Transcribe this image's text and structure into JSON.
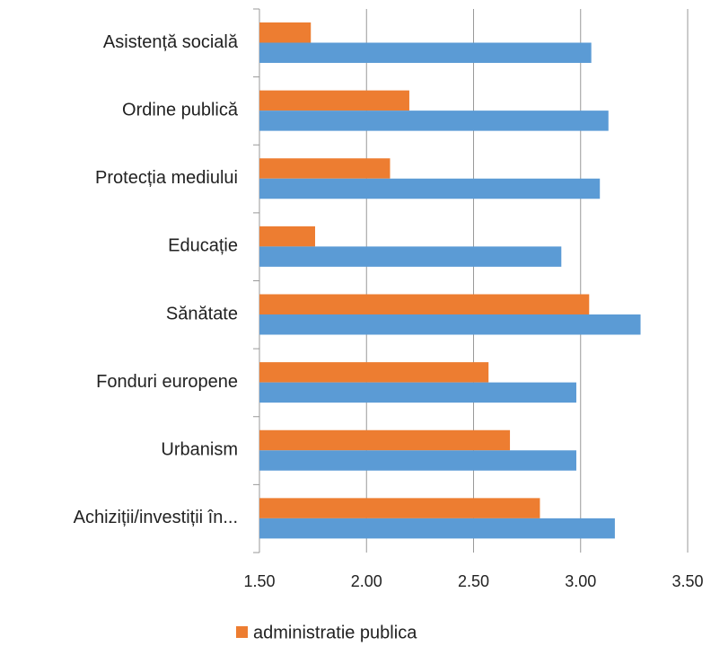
{
  "chart_data": {
    "type": "hbar",
    "categories": [
      "Asistență socială",
      "Ordine publică",
      "Protecția mediului",
      "Educație",
      "Sănătate",
      "Fonduri europene",
      "Urbanism",
      "Achiziții/investiții în..."
    ],
    "series": [
      {
        "name": "administratie publica",
        "color": "#ED7D31",
        "values": [
          1.74,
          2.2,
          2.11,
          1.76,
          3.04,
          2.57,
          2.67,
          2.81
        ]
      },
      {
        "color": "#5B9BD5",
        "values": [
          3.05,
          3.13,
          3.09,
          2.91,
          3.28,
          2.98,
          2.98,
          3.16
        ]
      }
    ],
    "xlim": [
      1.5,
      3.5
    ],
    "xticks": [
      {
        "value": 1.5,
        "label": "1.50"
      },
      {
        "value": 2.0,
        "label": "2.00"
      },
      {
        "value": 2.5,
        "label": "2.50"
      },
      {
        "value": 3.0,
        "label": "3.00"
      },
      {
        "value": 3.5,
        "label": "3.50"
      }
    ],
    "grid": true,
    "legend": "bottom"
  }
}
